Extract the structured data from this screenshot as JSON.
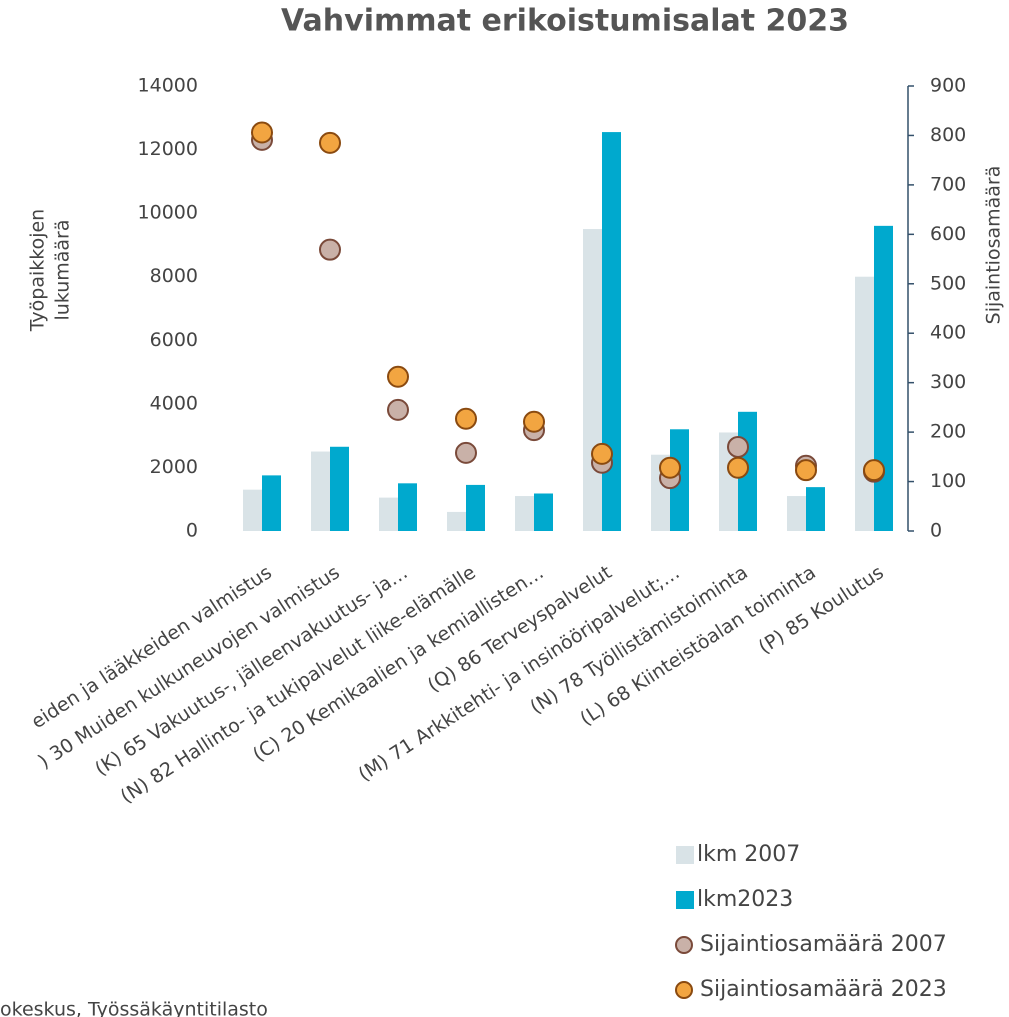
{
  "chart_data": {
    "type": "bar",
    "title": "Vahvimmat erikoistumisalat 2023",
    "y_label": [
      "Työpaikkojen",
      "lukumäärä"
    ],
    "y2_label": "Sijaintiosamäärä",
    "source": "okeskus, Työssäkäyntitilasto",
    "categories": [
      "eiden ja lääkkeiden valmistus",
      ") 30 Muiden kulkuneuvojen valmistus",
      "(K) 65 Vakuutus-, jälleenvakuutus- ja…",
      "(N) 82 Hallinto- ja tukipalvelut liike-elämälle",
      "(C) 20 Kemikaalien ja kemiallisten…",
      "(Q) 86 Terveyspalvelut",
      "(M) 71 Arkkitehti- ja insinööripalvelut;…",
      "(N) 78 Työllistämistoiminta",
      "(L) 68 Kiinteistöalan toiminta",
      "(P) 85 Koulutus"
    ],
    "series": [
      {
        "name": "lkm 2007",
        "type": "bar",
        "color": "#d9e3e7",
        "values": [
          1300,
          2500,
          1050,
          600,
          1100,
          9500,
          2400,
          3100,
          1100,
          8000
        ]
      },
      {
        "name": "lkm2023",
        "type": "bar",
        "color": "#00a9ce",
        "values": [
          1750,
          2650,
          1500,
          1450,
          1180,
          12550,
          3200,
          3750,
          1380,
          9600
        ]
      },
      {
        "name": "Sijaintiosamäärä 2007",
        "type": "scatter",
        "axis": "y2",
        "color": "#c9b1a8",
        "values": [
          791,
          569,
          245,
          158,
          204,
          138,
          107,
          170,
          132,
          120
        ]
      },
      {
        "name": "Sijaintiosamäärä 2023",
        "type": "scatter",
        "axis": "y2",
        "color": "#f2a541",
        "values": [
          806,
          785,
          312,
          227,
          221,
          156,
          128,
          128,
          123,
          123
        ]
      }
    ],
    "ylim": [
      0,
      14000
    ],
    "yticks": [
      0,
      2000,
      4000,
      6000,
      8000,
      10000,
      12000,
      14000
    ],
    "y2lim": [
      0,
      900
    ],
    "y2ticks": [
      0,
      100,
      200,
      300,
      400,
      500,
      600,
      700,
      800,
      900
    ]
  }
}
